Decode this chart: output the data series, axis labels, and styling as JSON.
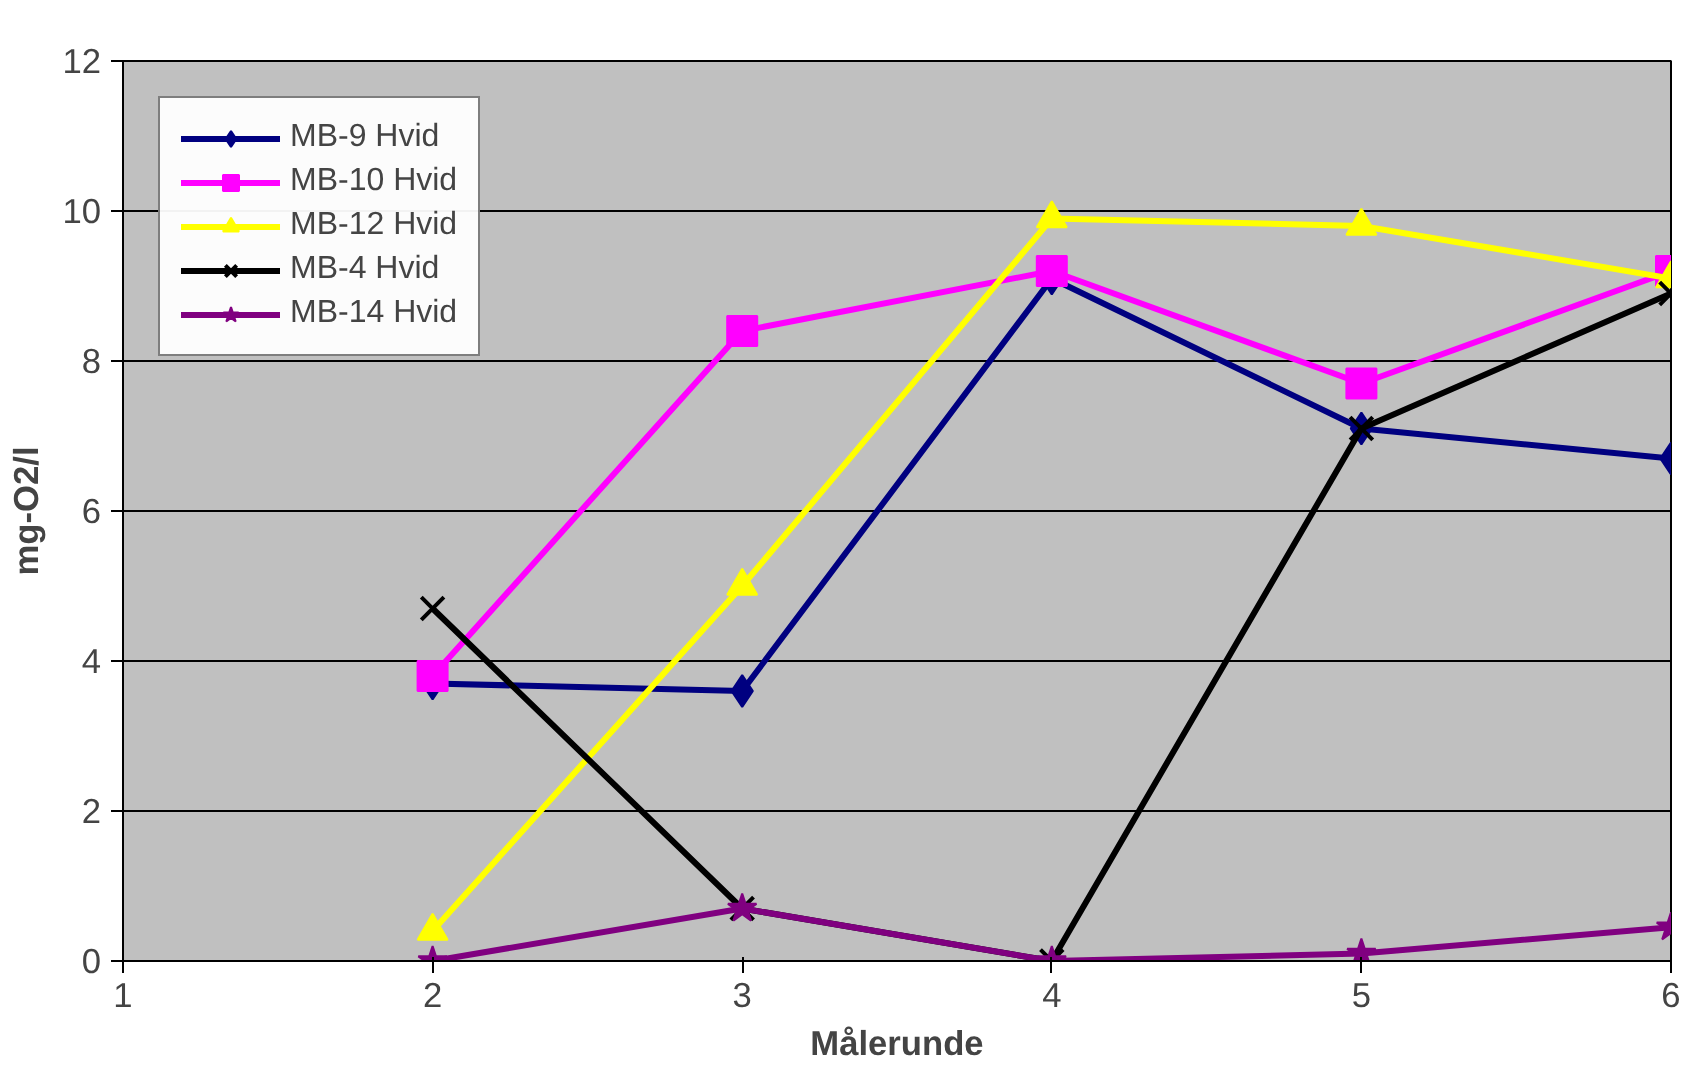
{
  "chart_data": {
    "type": "line",
    "xlabel": "Målerunde",
    "ylabel": "mg-O2/l",
    "x": [
      2,
      3,
      4,
      5,
      6
    ],
    "xlim": [
      1,
      6
    ],
    "xticks": [
      1,
      2,
      3,
      4,
      5,
      6
    ],
    "ylim": [
      0,
      12
    ],
    "yticks": [
      0,
      2,
      4,
      6,
      8,
      10,
      12
    ],
    "grid": "y",
    "legend": "top left",
    "line_style": "solid",
    "series": [
      {
        "name": "MB-9 Hvid",
        "color": "#000080",
        "marker": "diamond",
        "values": [
          3.7,
          3.6,
          9.1,
          7.1,
          6.7
        ]
      },
      {
        "name": "MB-10 Hvid",
        "color": "#ff00ff",
        "marker": "square",
        "values": [
          3.8,
          8.4,
          9.2,
          7.7,
          9.2
        ]
      },
      {
        "name": "MB-12 Hvid",
        "color": "#ffff00",
        "marker": "triangle",
        "values": [
          0.4,
          5.0,
          9.9,
          9.8,
          9.1
        ]
      },
      {
        "name": "MB-4 Hvid",
        "color": "#000000",
        "marker": "cross",
        "values": [
          4.7,
          0.7,
          0.0,
          7.1,
          8.9
        ]
      },
      {
        "name": "MB-14 Hvid",
        "color": "#800080",
        "marker": "star",
        "values": [
          0.0,
          0.7,
          0.0,
          0.1,
          0.45
        ]
      }
    ]
  }
}
